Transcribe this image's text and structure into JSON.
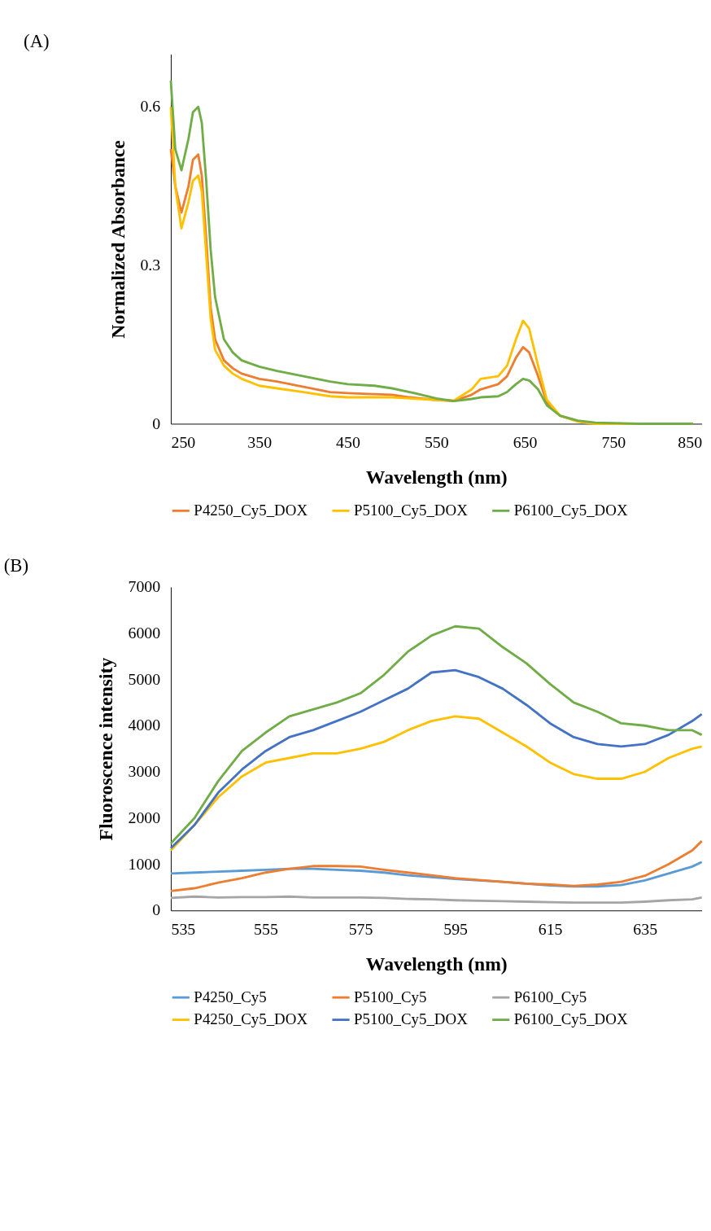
{
  "chart_data": [
    {
      "type": "line",
      "title": "(A)",
      "xlabel": "Wavelength (nm)",
      "ylabel": "Normalized Absorbance",
      "xlim": [
        250,
        850
      ],
      "xticks": [
        250,
        350,
        450,
        550,
        650,
        750,
        850
      ],
      "ylim": [
        0,
        0.7
      ],
      "yticks": [
        0,
        0.3,
        0.6
      ],
      "grid": false,
      "legend": "bottom",
      "marker": "none",
      "line_style": "solid",
      "x": [
        250,
        255,
        262,
        270,
        275,
        281,
        285,
        290,
        295,
        300,
        310,
        320,
        330,
        350,
        370,
        400,
        430,
        450,
        480,
        500,
        520,
        550,
        570,
        590,
        600,
        620,
        630,
        640,
        648,
        655,
        665,
        675,
        690,
        710,
        730,
        780,
        840
      ],
      "series": [
        {
          "name": "P4250_Cy5_DOX",
          "color": "#ed7d31",
          "values": [
            0.52,
            0.45,
            0.4,
            0.45,
            0.5,
            0.51,
            0.47,
            0.35,
            0.22,
            0.16,
            0.12,
            0.105,
            0.095,
            0.085,
            0.08,
            0.07,
            0.06,
            0.058,
            0.056,
            0.055,
            0.05,
            0.045,
            0.043,
            0.055,
            0.065,
            0.075,
            0.09,
            0.125,
            0.145,
            0.135,
            0.09,
            0.04,
            0.015,
            0.005,
            0.0,
            0.0,
            0.0
          ]
        },
        {
          "name": "P5100_Cy5_DOX",
          "color": "#ffc000",
          "values": [
            0.6,
            0.45,
            0.37,
            0.42,
            0.46,
            0.47,
            0.44,
            0.32,
            0.2,
            0.14,
            0.11,
            0.095,
            0.085,
            0.072,
            0.067,
            0.06,
            0.052,
            0.05,
            0.05,
            0.05,
            0.048,
            0.045,
            0.044,
            0.065,
            0.085,
            0.09,
            0.11,
            0.16,
            0.195,
            0.18,
            0.11,
            0.045,
            0.015,
            0.004,
            0.0,
            0.0,
            0.0
          ]
        },
        {
          "name": "P6100_Cy5_DOX",
          "color": "#70ad47",
          "values": [
            0.65,
            0.52,
            0.48,
            0.54,
            0.59,
            0.6,
            0.57,
            0.46,
            0.33,
            0.24,
            0.16,
            0.135,
            0.12,
            0.108,
            0.1,
            0.09,
            0.08,
            0.075,
            0.072,
            0.067,
            0.06,
            0.048,
            0.043,
            0.047,
            0.05,
            0.052,
            0.06,
            0.075,
            0.085,
            0.082,
            0.065,
            0.035,
            0.015,
            0.006,
            0.002,
            0.0,
            0.0
          ]
        }
      ]
    },
    {
      "type": "line",
      "title": "(B)",
      "xlabel": "Wavelength (nm)",
      "ylabel": "Fluoroscence intensity",
      "xlim": [
        535,
        647
      ],
      "xticks": [
        535,
        555,
        575,
        595,
        615,
        635
      ],
      "ylim": [
        0,
        7000
      ],
      "yticks": [
        0,
        1000,
        2000,
        3000,
        4000,
        5000,
        6000,
        7000
      ],
      "grid": false,
      "legend": "bottom",
      "marker": "none",
      "line_style": "solid",
      "x": [
        535,
        540,
        545,
        550,
        555,
        560,
        565,
        570,
        575,
        580,
        585,
        590,
        595,
        600,
        605,
        610,
        615,
        620,
        625,
        630,
        635,
        640,
        645,
        647
      ],
      "series": [
        {
          "name": "P4250_Cy5",
          "color": "#5b9bd5",
          "values": [
            800,
            820,
            840,
            860,
            880,
            900,
            900,
            880,
            860,
            820,
            760,
            720,
            680,
            650,
            620,
            580,
            540,
            520,
            520,
            550,
            650,
            800,
            950,
            1050
          ]
        },
        {
          "name": "P5100_Cy5",
          "color": "#ed7d31",
          "values": [
            420,
            480,
            600,
            700,
            820,
            900,
            960,
            960,
            950,
            880,
            820,
            760,
            700,
            660,
            620,
            580,
            560,
            530,
            560,
            620,
            750,
            1000,
            1300,
            1500
          ]
        },
        {
          "name": "P6100_Cy5",
          "color": "#a5a5a5",
          "values": [
            270,
            300,
            280,
            290,
            290,
            300,
            280,
            280,
            280,
            270,
            250,
            240,
            220,
            210,
            200,
            190,
            180,
            170,
            170,
            170,
            190,
            220,
            240,
            280
          ]
        },
        {
          "name": "P4250_Cy5_DOX",
          "color": "#ffc000",
          "values": [
            1300,
            1850,
            2450,
            2900,
            3200,
            3300,
            3400,
            3400,
            3500,
            3650,
            3900,
            4100,
            4200,
            4150,
            3850,
            3550,
            3200,
            2950,
            2850,
            2850,
            3000,
            3300,
            3500,
            3550
          ]
        },
        {
          "name": "P5100_Cy5_DOX",
          "color": "#4472c4",
          "values": [
            1350,
            1850,
            2550,
            3050,
            3450,
            3750,
            3900,
            4100,
            4300,
            4550,
            4800,
            5150,
            5200,
            5050,
            4800,
            4450,
            4050,
            3750,
            3600,
            3550,
            3600,
            3800,
            4100,
            4250
          ]
        },
        {
          "name": "P6100_Cy5_DOX",
          "color": "#70ad47",
          "values": [
            1450,
            2000,
            2800,
            3450,
            3850,
            4200,
            4350,
            4500,
            4700,
            5100,
            5600,
            5950,
            6150,
            6100,
            5700,
            5350,
            4900,
            4500,
            4300,
            4050,
            4000,
            3900,
            3900,
            3800
          ]
        }
      ]
    }
  ]
}
